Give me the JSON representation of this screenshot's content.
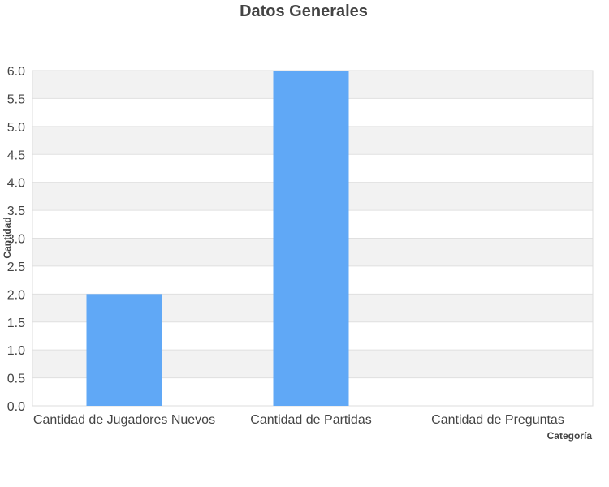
{
  "chart_data": {
    "type": "bar",
    "title": "Datos Generales",
    "xlabel": "Categoría",
    "ylabel": "Cantidad",
    "categories": [
      "Cantidad de Jugadores Nuevos",
      "Cantidad de Partidas",
      "Cantidad de Preguntas"
    ],
    "values": [
      2,
      6,
      0
    ],
    "ylim": [
      0,
      6
    ],
    "yticks": [
      "0.0",
      "0.5",
      "1.0",
      "1.5",
      "2.0",
      "2.5",
      "3.0",
      "3.5",
      "4.0",
      "4.5",
      "5.0",
      "5.5",
      "6.0"
    ],
    "grid": true,
    "legend": "none",
    "colors": {
      "bar": "#60a8f6",
      "band": "#f2f2f2",
      "gridline": "#e0e0e0",
      "text": "#444444"
    }
  }
}
